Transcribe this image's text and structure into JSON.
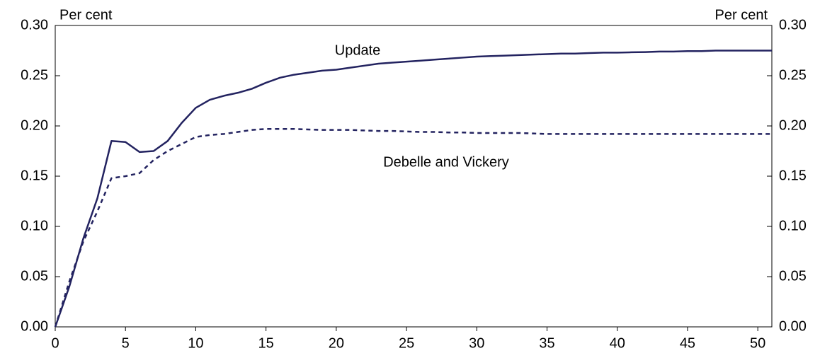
{
  "chart_data": {
    "type": "line",
    "y_unit_label": "Per cent",
    "y2_unit_label": "Per cent",
    "annotations": [
      "Update",
      "Debelle and Vickery"
    ],
    "x": [
      0,
      1,
      2,
      3,
      4,
      5,
      6,
      7,
      8,
      9,
      10,
      11,
      12,
      13,
      14,
      15,
      16,
      17,
      18,
      19,
      20,
      21,
      22,
      23,
      24,
      25,
      26,
      27,
      28,
      29,
      30,
      31,
      32,
      33,
      34,
      35,
      36,
      37,
      38,
      39,
      40,
      41,
      42,
      43,
      44,
      45,
      46,
      47,
      48,
      49,
      50,
      51
    ],
    "series": [
      {
        "name": "Update",
        "color": "#232360",
        "line_style": "solid",
        "values": [
          0,
          0.04,
          0.088,
          0.128,
          0.185,
          0.184,
          0.174,
          0.175,
          0.185,
          0.203,
          0.218,
          0.226,
          0.23,
          0.233,
          0.237,
          0.243,
          0.248,
          0.251,
          0.253,
          0.255,
          0.256,
          0.258,
          0.26,
          0.262,
          0.263,
          0.264,
          0.265,
          0.266,
          0.267,
          0.268,
          0.269,
          0.2695,
          0.27,
          0.2705,
          0.271,
          0.2715,
          0.272,
          0.272,
          0.2725,
          0.273,
          0.273,
          0.2733,
          0.2735,
          0.274,
          0.274,
          0.2745,
          0.2745,
          0.275,
          0.275,
          0.275,
          0.275,
          0.275
        ]
      },
      {
        "name": "Debelle and Vickery",
        "color": "#232360",
        "line_style": "dashed",
        "values": [
          0,
          0.045,
          0.085,
          0.115,
          0.148,
          0.15,
          0.153,
          0.166,
          0.175,
          0.182,
          0.189,
          0.191,
          0.192,
          0.194,
          0.196,
          0.197,
          0.197,
          0.197,
          0.1965,
          0.196,
          0.196,
          0.196,
          0.1955,
          0.195,
          0.195,
          0.1945,
          0.194,
          0.194,
          0.1935,
          0.1935,
          0.193,
          0.193,
          0.193,
          0.193,
          0.1925,
          0.192,
          0.192,
          0.192,
          0.192,
          0.192,
          0.192,
          0.192,
          0.192,
          0.192,
          0.192,
          0.192,
          0.192,
          0.192,
          0.192,
          0.192,
          0.192,
          0.192
        ]
      }
    ],
    "xlim": [
      0,
      51
    ],
    "xticks": [
      0,
      5,
      10,
      15,
      20,
      25,
      30,
      35,
      40,
      45,
      50
    ],
    "ylim": [
      0,
      0.3
    ],
    "yticks": [
      {
        "value": 0,
        "label": "0.00"
      },
      {
        "value": 0.05,
        "label": "0.05"
      },
      {
        "value": 0.1,
        "label": "0.10"
      },
      {
        "value": 0.15,
        "label": "0.15"
      },
      {
        "value": 0.2,
        "label": "0.20"
      },
      {
        "value": 0.25,
        "label": "0.25"
      },
      {
        "value": 0.3,
        "label": "0.30"
      }
    ],
    "y2lim": [
      0,
      0.3
    ],
    "y2ticks": [
      {
        "value": 0,
        "label": "0.00"
      },
      {
        "value": 0.05,
        "label": "0.05"
      },
      {
        "value": 0.1,
        "label": "0.10"
      },
      {
        "value": 0.15,
        "label": "0.15"
      },
      {
        "value": 0.2,
        "label": "0.20"
      },
      {
        "value": 0.25,
        "label": "0.25"
      },
      {
        "value": 0.3,
        "label": "0.30"
      }
    ],
    "grid": false
  }
}
